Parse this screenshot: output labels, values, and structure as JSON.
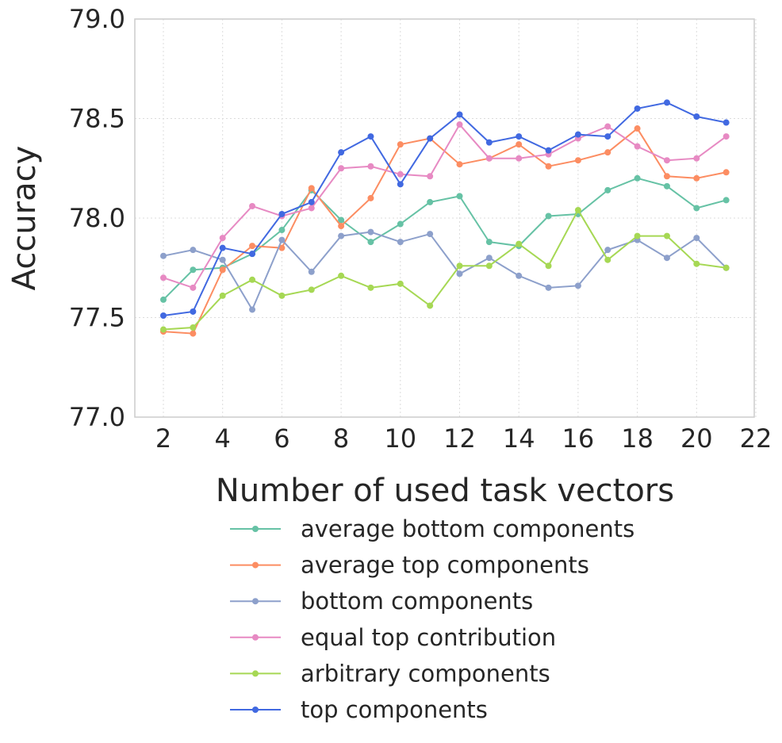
{
  "chart_data": {
    "type": "line",
    "title": "",
    "xlabel": "Number of used task vectors",
    "ylabel": "Accuracy",
    "xlim": [
      1.1,
      22.0
    ],
    "ylim": [
      77.0,
      79.0
    ],
    "xticks": [
      2,
      4,
      6,
      8,
      10,
      12,
      14,
      16,
      18,
      20,
      22
    ],
    "xtick_labels": [
      "2",
      "4",
      "6",
      "8",
      "10",
      "12",
      "14",
      "16",
      "18",
      "20",
      "22"
    ],
    "yticks": [
      77.0,
      77.5,
      78.0,
      78.5,
      79.0
    ],
    "ytick_labels": [
      "77.0",
      "77.5",
      "78.0",
      "78.5",
      "79.0"
    ],
    "grid": true,
    "legend_position": "below",
    "x": [
      2,
      3,
      4,
      5,
      6,
      7,
      8,
      9,
      10,
      11,
      12,
      13,
      14,
      15,
      16,
      17,
      18,
      19,
      20,
      21
    ],
    "series": [
      {
        "name": "average bottom components",
        "color": "#66c2a5",
        "values": [
          77.59,
          77.74,
          77.75,
          77.82,
          77.94,
          78.14,
          77.99,
          77.88,
          77.97,
          78.08,
          78.11,
          77.88,
          77.86,
          78.01,
          78.02,
          78.14,
          78.2,
          78.16,
          78.05,
          78.09
        ]
      },
      {
        "name": "average top components",
        "color": "#fc8d62",
        "values": [
          77.43,
          77.42,
          77.74,
          77.86,
          77.85,
          78.15,
          77.96,
          78.1,
          78.37,
          78.4,
          78.27,
          78.3,
          78.37,
          78.26,
          78.29,
          78.33,
          78.45,
          78.21,
          78.2,
          78.23
        ]
      },
      {
        "name": "bottom components",
        "color": "#8da0cb",
        "values": [
          77.81,
          77.84,
          77.79,
          77.54,
          77.89,
          77.73,
          77.91,
          77.93,
          77.88,
          77.92,
          77.72,
          77.8,
          77.71,
          77.65,
          77.66,
          77.84,
          77.89,
          77.8,
          77.9,
          77.75
        ]
      },
      {
        "name": "equal top contribution",
        "color": "#e78ac3",
        "values": [
          77.7,
          77.65,
          77.9,
          78.06,
          78.01,
          78.05,
          78.25,
          78.26,
          78.22,
          78.21,
          78.47,
          78.3,
          78.3,
          78.32,
          78.4,
          78.46,
          78.36,
          78.29,
          78.3,
          78.41
        ]
      },
      {
        "name": "arbitrary components",
        "color": "#a6d854",
        "values": [
          77.44,
          77.45,
          77.61,
          77.69,
          77.61,
          77.64,
          77.71,
          77.65,
          77.67,
          77.56,
          77.76,
          77.76,
          77.87,
          77.76,
          78.04,
          77.79,
          77.91,
          77.91,
          77.77,
          77.75
        ]
      },
      {
        "name": "top components",
        "color": "#4169e1",
        "values": [
          77.51,
          77.53,
          77.85,
          77.82,
          78.02,
          78.08,
          78.33,
          78.41,
          78.17,
          78.4,
          78.52,
          78.38,
          78.41,
          78.34,
          78.42,
          78.41,
          78.55,
          78.58,
          78.51,
          78.48
        ]
      }
    ]
  }
}
